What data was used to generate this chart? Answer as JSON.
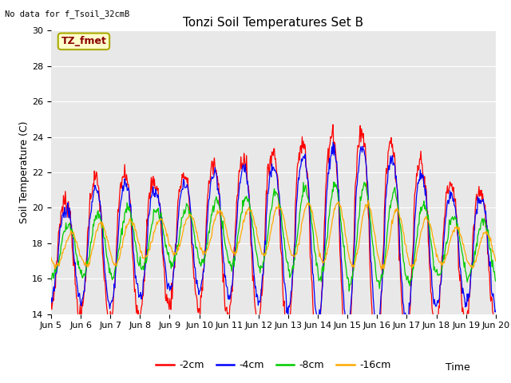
{
  "title": "Tonzi Soil Temperatures Set B",
  "xlabel": "Time",
  "ylabel": "Soil Temperature (C)",
  "no_data_text": "No data for f_Tsoil_32cmB",
  "tz_fmet_label": "TZ_fmet",
  "ylim": [
    14,
    30
  ],
  "background_color": "#e8e8e8",
  "legend_entries": [
    "-2cm",
    "-4cm",
    "-8cm",
    "-16cm"
  ],
  "legend_colors": [
    "#ff0000",
    "#0000ff",
    "#00cc00",
    "#ffaa00"
  ],
  "xtick_labels": [
    "Jun 5",
    "Jun 6",
    "Jun 7",
    "Jun 8",
    "Jun 9",
    "Jun 10",
    "Jun 11",
    "Jun 12",
    "Jun 13",
    "Jun 14",
    "Jun 15",
    "Jun 16",
    "Jun 17",
    "Jun 18",
    "Jun 19",
    "Jun 20"
  ],
  "ytick_values": [
    14,
    16,
    18,
    20,
    22,
    24,
    26,
    28,
    30
  ],
  "title_fontsize": 11,
  "axis_label_fontsize": 9,
  "tick_fontsize": 8
}
